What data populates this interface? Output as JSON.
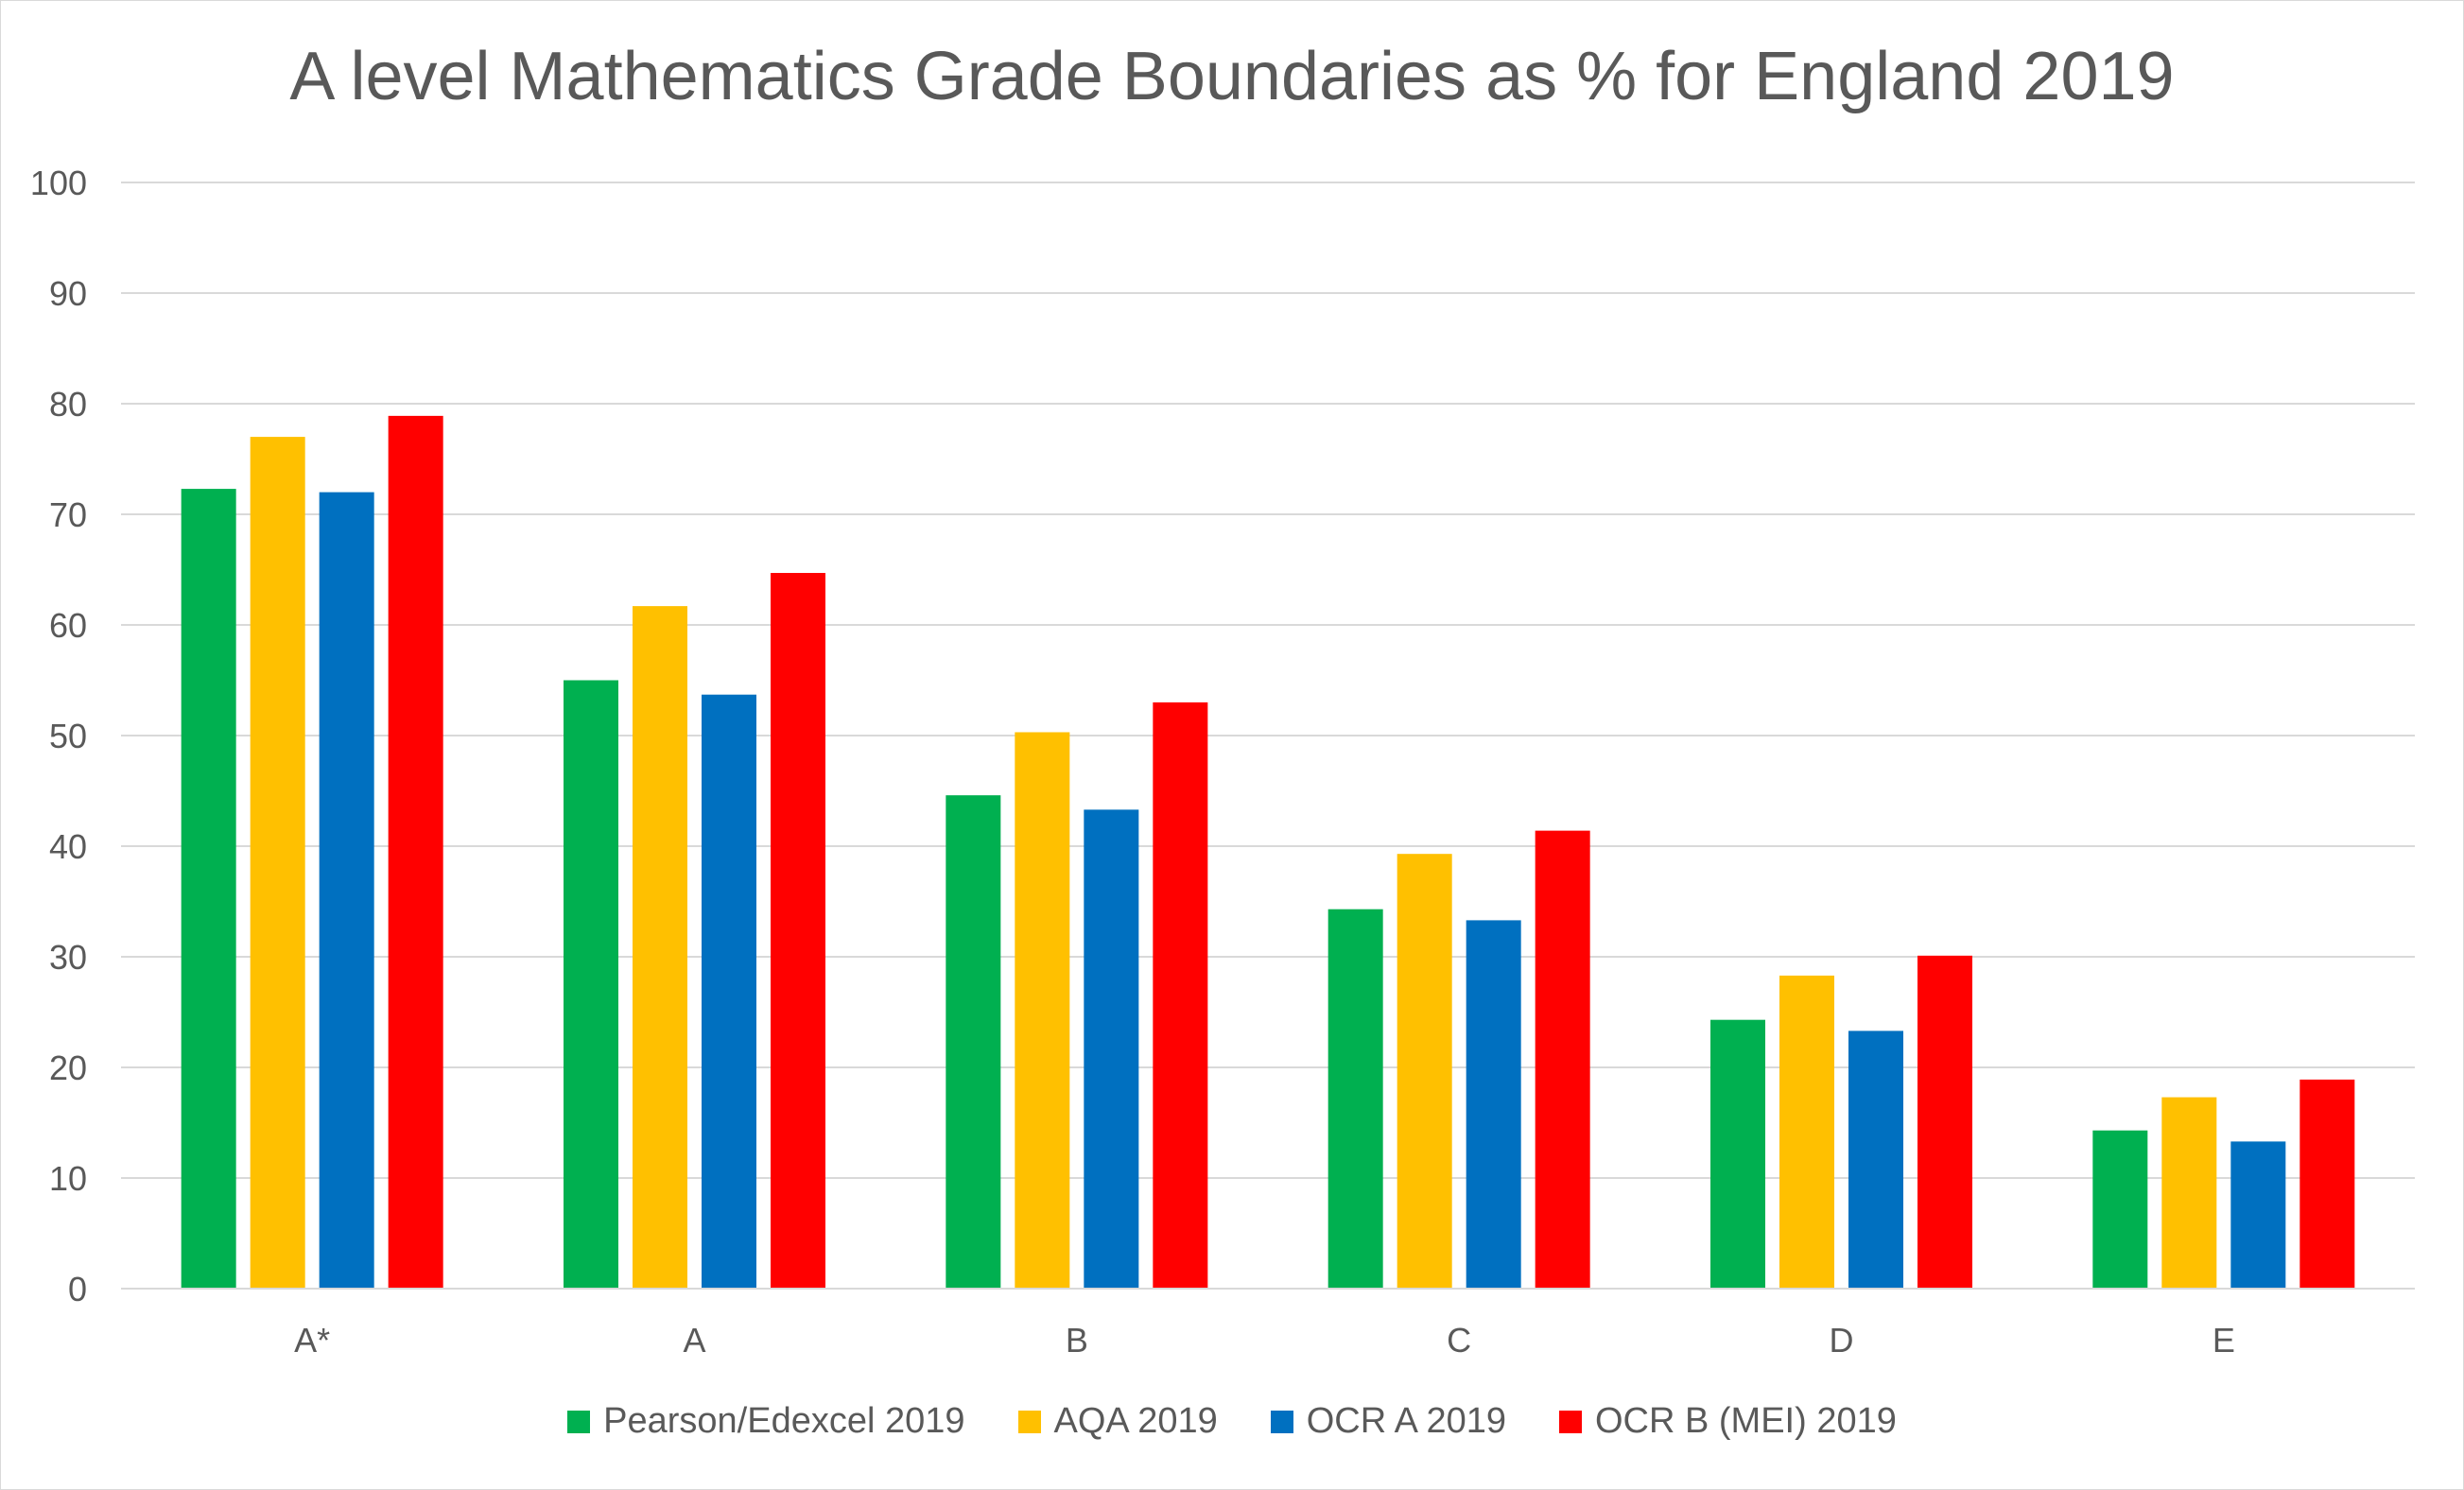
{
  "chart_data": {
    "type": "bar",
    "title": "A level Mathematics Grade Boundaries as % for England 2019",
    "xlabel": "",
    "ylabel": "",
    "ylim": [
      0,
      100
    ],
    "yticks": [
      "0",
      "10",
      "20",
      "30",
      "40",
      "50",
      "60",
      "70",
      "80",
      "90",
      "100"
    ],
    "categories": [
      "A*",
      "A",
      "B",
      "C",
      "D",
      "E"
    ],
    "series": [
      {
        "name": "Pearson/Edexcel 2019",
        "color": "#00b050",
        "values": [
          72.3,
          55.0,
          44.6,
          34.3,
          24.3,
          14.3
        ]
      },
      {
        "name": "AQA 2019",
        "color": "#ffc000",
        "values": [
          77.0,
          61.7,
          50.3,
          39.3,
          28.3,
          17.3
        ]
      },
      {
        "name": "OCR A 2019",
        "color": "#0070c0",
        "values": [
          72.0,
          53.7,
          43.3,
          33.3,
          23.3,
          13.3
        ]
      },
      {
        "name": "OCR B (MEI) 2019",
        "color": "#ff0000",
        "values": [
          78.9,
          64.7,
          53.0,
          41.4,
          30.1,
          18.9
        ]
      }
    ],
    "grid": true,
    "legend_position": "bottom"
  }
}
